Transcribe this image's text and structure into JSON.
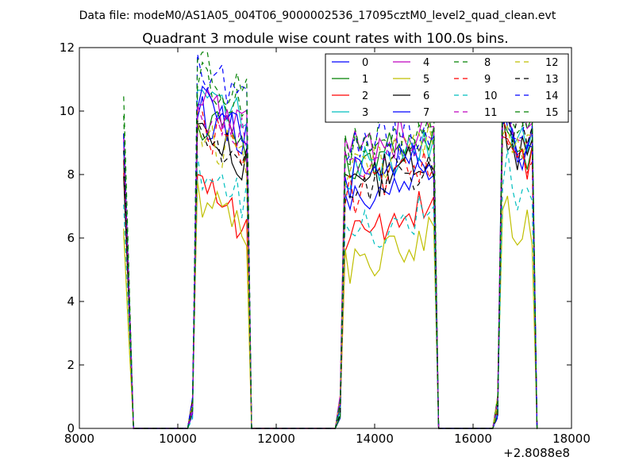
{
  "header": {
    "datafile_text": "Data file: modeM0/AS1A05_004T06_9000002536_17095cztM0_level2_quad_clean.evt"
  },
  "chart_data": {
    "type": "line",
    "title": "Quadrant 3 module wise count rates with 100.0s bins.",
    "xlabel": "",
    "ylabel": "",
    "x_offset_label": "+2.8088e8",
    "xlim": [
      8000,
      18000
    ],
    "ylim": [
      0,
      12
    ],
    "x_ticks": [
      8000,
      10000,
      12000,
      14000,
      16000,
      18000
    ],
    "y_ticks": [
      0,
      2,
      4,
      6,
      8,
      10,
      12
    ],
    "x_tick_labels": [
      "8000",
      "10000",
      "12000",
      "14000",
      "16000",
      "18000"
    ],
    "y_tick_labels": [
      "0",
      "2",
      "4",
      "6",
      "8",
      "10",
      "12"
    ],
    "grid": false,
    "legend_position": "top-right",
    "legend_columns": 4,
    "segments": [
      {
        "x_start": 8900,
        "x_end": 9100
      },
      {
        "x_start": 10300,
        "x_end": 11500
      },
      {
        "x_start": 13300,
        "x_end": 15300
      },
      {
        "x_start": 16500,
        "x_end": 17300
      }
    ],
    "series": [
      {
        "name": "0",
        "color": "#0000ff",
        "dash": "solid",
        "levels": [
          9.5,
          9.5,
          7.6,
          9.2
        ]
      },
      {
        "name": "1",
        "color": "#008000",
        "dash": "solid",
        "levels": [
          8.5,
          9.3,
          8.5,
          8.8
        ]
      },
      {
        "name": "2",
        "color": "#ff0000",
        "dash": "solid",
        "levels": [
          8.0,
          7.0,
          6.3,
          8.6
        ]
      },
      {
        "name": "3",
        "color": "#00bfbf",
        "dash": "solid",
        "levels": [
          8.8,
          10.2,
          8.3,
          9.5
        ]
      },
      {
        "name": "4",
        "color": "#bf00bf",
        "dash": "solid",
        "levels": [
          9.2,
          10.1,
          9.0,
          10.0
        ]
      },
      {
        "name": "5",
        "color": "#bfbf00",
        "dash": "solid",
        "levels": [
          6.2,
          6.7,
          5.5,
          6.5
        ]
      },
      {
        "name": "6",
        "color": "#000000",
        "dash": "solid",
        "levels": [
          8.1,
          8.9,
          7.9,
          8.8
        ]
      },
      {
        "name": "7",
        "color": "#0000ff",
        "dash": "solid",
        "levels": [
          9.0,
          9.8,
          8.2,
          9.0
        ]
      },
      {
        "name": "8",
        "color": "#008000",
        "dash": "dashed",
        "levels": [
          10.6,
          10.5,
          9.3,
          9.8
        ]
      },
      {
        "name": "9",
        "color": "#ff0000",
        "dash": "dashed",
        "levels": [
          8.3,
          9.0,
          7.6,
          8.9
        ]
      },
      {
        "name": "10",
        "color": "#00bfbf",
        "dash": "dashed",
        "levels": [
          7.0,
          7.6,
          6.3,
          7.5
        ]
      },
      {
        "name": "11",
        "color": "#bf00bf",
        "dash": "dashed",
        "levels": [
          9.1,
          9.6,
          8.7,
          9.6
        ]
      },
      {
        "name": "12",
        "color": "#bfbf00",
        "dash": "dashed",
        "levels": [
          6.3,
          8.8,
          8.4,
          9.0
        ]
      },
      {
        "name": "13",
        "color": "#000000",
        "dash": "dashed",
        "levels": [
          8.7,
          9.0,
          7.8,
          9.7
        ]
      },
      {
        "name": "14",
        "color": "#0000ff",
        "dash": "dashed",
        "levels": [
          9.4,
          11.0,
          8.9,
          9.9
        ]
      },
      {
        "name": "15",
        "color": "#008000",
        "dash": "dashed",
        "levels": [
          10.0,
          10.9,
          9.0,
          10.1
        ]
      }
    ]
  }
}
